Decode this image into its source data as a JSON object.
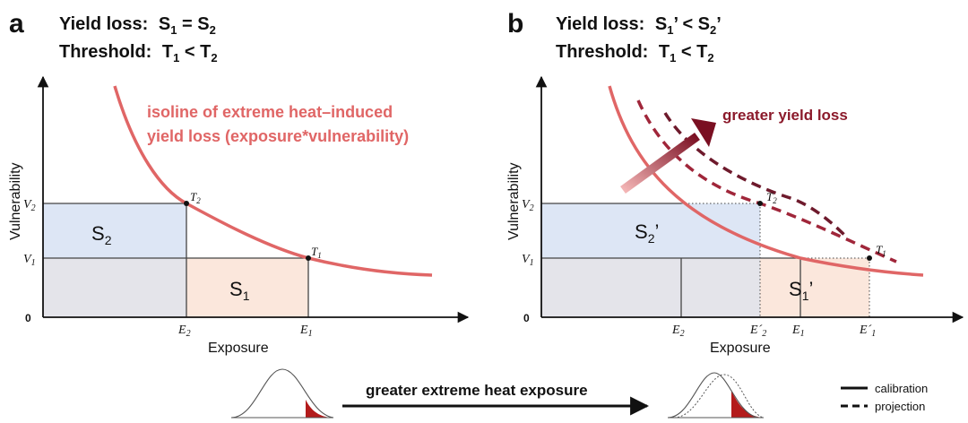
{
  "panels": [
    {
      "letter": "a",
      "yield_label": "Yield loss:",
      "yield_formula": "S",
      "yield_sub_a": "1",
      "yield_mid": " = S",
      "yield_sub_b": "2",
      "yield_tail": "",
      "threshold_label": "Threshold:",
      "threshold_formula": "T",
      "threshold_sub_a": "1",
      "threshold_mid": " < T",
      "threshold_sub_b": "2",
      "y_axis_label": "Vulnerability",
      "x_axis_label": "Exposure",
      "origin": "0",
      "curve_label_line1": "isoline of extreme heat–induced",
      "curve_label_line2": "yield loss (exposure*vulnerability)",
      "area_s2": "S",
      "area_s2_sub": "2",
      "area_s1": "S",
      "area_s1_sub": "1",
      "v2": "V",
      "v2_sub": "2",
      "v1": "V",
      "v1_sub": "1",
      "e2": "E",
      "e2_sub": "2",
      "e1": "E",
      "e1_sub": "1",
      "t2": "T",
      "t2_sub": "2",
      "t1": "T",
      "t1_sub": "1"
    },
    {
      "letter": "b",
      "yield_label": "Yield loss:",
      "yield_formula": "S",
      "yield_sub_a": "1",
      "yield_mid": "’ < S",
      "yield_sub_b": "2",
      "yield_tail": "’",
      "threshold_label": "Threshold:",
      "threshold_formula": "T",
      "threshold_sub_a": "1",
      "threshold_mid": " < T",
      "threshold_sub_b": "2",
      "y_axis_label": "Vulnerability",
      "x_axis_label": "Exposure",
      "origin": "0",
      "arrow_label": "greater yield loss",
      "area_s2": "S",
      "area_s2_sub": "2",
      "area_s2_prime": "’",
      "area_s1": "S",
      "area_s1_sub": "1",
      "area_s1_prime": "’",
      "v2": "V",
      "v2_sub": "2",
      "v1": "V",
      "v1_sub": "1",
      "e2": "E",
      "e2_sub": "2",
      "e2p": "E",
      "e2p_mark": "´",
      "e2p_sub": "2",
      "e1": "E",
      "e1_sub": "1",
      "e1p": "E",
      "e1p_mark": "´",
      "e1p_sub": "1",
      "t2": "T",
      "t2_sub": "2",
      "t1": "T",
      "t1_sub": "1"
    }
  ],
  "bottom": {
    "shift_label": "greater extreme heat exposure",
    "legend_solid": "calibration",
    "legend_dashed": "projection"
  },
  "colors": {
    "curve": "#e06666",
    "dark_red": "#8b1a2b",
    "tail_red": "#b31b1b",
    "s2_fill": "#dde6f5",
    "s1_fill": "#fbe7dc",
    "base_fill": "#e4e4ea"
  }
}
